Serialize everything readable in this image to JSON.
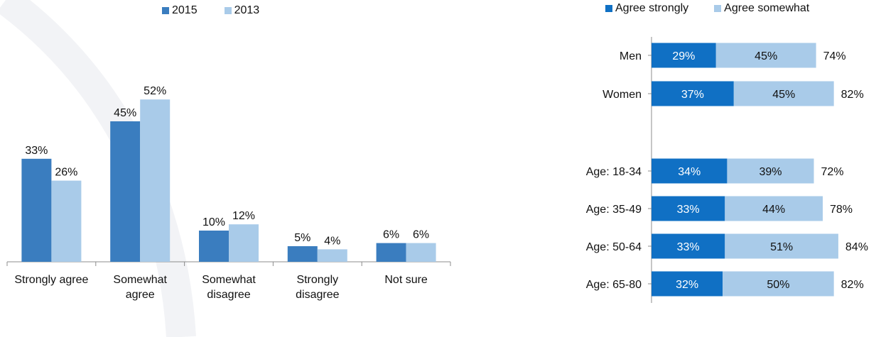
{
  "chart_data": [
    {
      "type": "bar",
      "categories": [
        "Strongly agree",
        "Somewhat agree",
        "Somewhat disagree",
        "Strongly disagree",
        "Not sure"
      ],
      "category_lines": [
        [
          "Strongly agree"
        ],
        [
          "Somewhat",
          "agree"
        ],
        [
          "Somewhat",
          "disagree"
        ],
        [
          "Strongly",
          "disagree"
        ],
        [
          "Not sure"
        ]
      ],
      "series": [
        {
          "name": "2015",
          "values": [
            33,
            45,
            10,
            5,
            6
          ],
          "labels": [
            "33%",
            "45%",
            "10%",
            "5%",
            "6%"
          ],
          "color": "#3a7dbf"
        },
        {
          "name": "2013",
          "values": [
            26,
            52,
            12,
            4,
            6
          ],
          "labels": [
            "26%",
            "52%",
            "12%",
            "4%",
            "6%"
          ],
          "color": "#a9cbe9"
        }
      ],
      "ylim": [
        0,
        60
      ],
      "grid": false,
      "legend_position": "top-center"
    },
    {
      "type": "bar",
      "orientation": "horizontal",
      "stacked": true,
      "categories": [
        "Men",
        "Women",
        "",
        "Age: 18-34",
        "Age: 35-49",
        "Age: 50-64",
        "Age: 65-80"
      ],
      "series": [
        {
          "name": "Agree strongly",
          "values": [
            29,
            37,
            null,
            34,
            33,
            33,
            32
          ],
          "labels": [
            "29%",
            "37%",
            "",
            "34%",
            "33%",
            "33%",
            "32%"
          ],
          "color": "#1070c4"
        },
        {
          "name": "Agree somewhat",
          "values": [
            45,
            45,
            null,
            39,
            44,
            51,
            50
          ],
          "labels": [
            "45%",
            "45%",
            "",
            "39%",
            "44%",
            "51%",
            "50%"
          ],
          "color": "#a9cbe9"
        }
      ],
      "totals": [
        "74%",
        "82%",
        "",
        "72%",
        "78%",
        "84%",
        "82%"
      ],
      "xlim": [
        0,
        100
      ],
      "grid": false,
      "legend_position": "top"
    }
  ]
}
